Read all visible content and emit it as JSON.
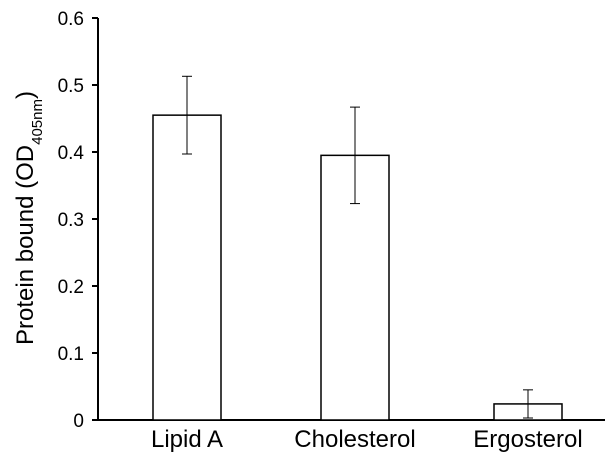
{
  "chart_data": {
    "type": "bar",
    "title": "",
    "xlabel": "",
    "ylabel": {
      "main": "Protein bound (OD",
      "subscript": "405nm",
      "close": ")"
    },
    "categories": [
      "Lipid A",
      "Cholesterol",
      "Ergosterol"
    ],
    "values": [
      0.455,
      0.395,
      0.024
    ],
    "errors": [
      0.058,
      0.072,
      0.021
    ],
    "ylim": [
      0,
      0.6
    ],
    "yticks": [
      0,
      0.1,
      0.2,
      0.3,
      0.4,
      0.5,
      0.6
    ],
    "ytick_labels": [
      "0",
      "0.1",
      "0.2",
      "0.3",
      "0.4",
      "0.5",
      "0.6"
    ],
    "grid": false,
    "bar_fill": "#ffffff",
    "bar_stroke": "#000000"
  }
}
